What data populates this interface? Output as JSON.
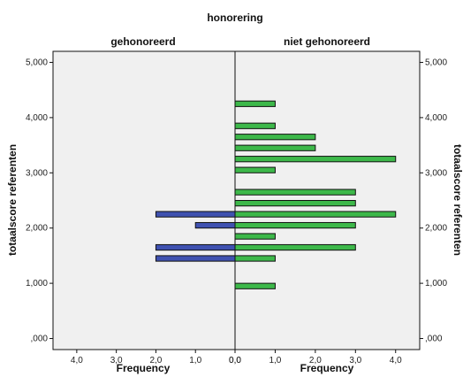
{
  "chart_data": {
    "type": "bar",
    "orientation": "horizontal-population-pyramid",
    "title": "honorering",
    "panels": [
      {
        "name": "gehonoreerd",
        "color": "#3f51b0",
        "direction": "left"
      },
      {
        "name": "niet gehonoreerd",
        "color": "#3db84a",
        "direction": "right"
      }
    ],
    "ylabel": "totaalscore referenten",
    "ylabel_right": "totaalscore referenten",
    "xlabel_left": "Frequency",
    "xlabel_right": "Frequency",
    "ylim": [
      -200,
      5200
    ],
    "yticks": [
      0,
      1000,
      2000,
      3000,
      4000,
      5000
    ],
    "ytick_labels": [
      ",000",
      "1,000",
      "2,000",
      "3,000",
      "4,000",
      "5,000"
    ],
    "xlim": [
      0,
      4.6
    ],
    "xticks": [
      0,
      1,
      2,
      3,
      4
    ],
    "xtick_labels_left": [
      "0,0",
      "1,0",
      "2,0",
      "3,0",
      "4,0"
    ],
    "xtick_labels_right": [
      "0,0",
      "1,0",
      "2,0",
      "3,0",
      "4,0"
    ],
    "bin_width": 100,
    "series": [
      {
        "name": "gehonoreerd",
        "bins": [
          {
            "y_start": 1400,
            "count": 2
          },
          {
            "y_start": 1600,
            "count": 2
          },
          {
            "y_start": 2000,
            "count": 1
          },
          {
            "y_start": 2200,
            "count": 2
          }
        ]
      },
      {
        "name": "niet gehonoreerd",
        "bins": [
          {
            "y_start": 900,
            "count": 1
          },
          {
            "y_start": 1400,
            "count": 1
          },
          {
            "y_start": 1600,
            "count": 3
          },
          {
            "y_start": 1800,
            "count": 1
          },
          {
            "y_start": 2000,
            "count": 3
          },
          {
            "y_start": 2200,
            "count": 4
          },
          {
            "y_start": 2400,
            "count": 3
          },
          {
            "y_start": 2600,
            "count": 3
          },
          {
            "y_start": 3000,
            "count": 1
          },
          {
            "y_start": 3200,
            "count": 4
          },
          {
            "y_start": 3400,
            "count": 2
          },
          {
            "y_start": 3600,
            "count": 2
          },
          {
            "y_start": 3800,
            "count": 1
          },
          {
            "y_start": 4200,
            "count": 1
          }
        ]
      }
    ],
    "colors": {
      "plot_bg": "#f0f0f0",
      "bar_edge": "#111111"
    }
  }
}
